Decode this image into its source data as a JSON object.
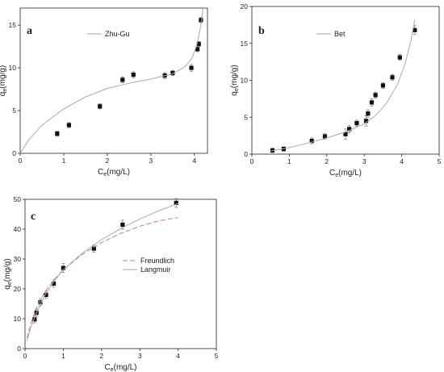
{
  "chart_data": [
    {
      "panel": "a",
      "type": "scatter",
      "xlabel": "Ce(mg/L)",
      "ylabel": "qe(mg/g)",
      "xlim": [
        0,
        4.3
      ],
      "ylim": [
        0,
        17
      ],
      "xticks": [
        0,
        1,
        2,
        3,
        4
      ],
      "yticks": [
        0,
        5,
        10,
        15
      ],
      "legend_position": "top-center",
      "series": [
        {
          "kind": "points",
          "marker": "square",
          "color": "#111111",
          "x": [
            0.85,
            1.12,
            1.83,
            2.35,
            2.6,
            3.32,
            3.5,
            3.93,
            4.07,
            4.1,
            4.15
          ],
          "y": [
            2.3,
            3.3,
            5.5,
            8.6,
            9.2,
            9.1,
            9.4,
            10.0,
            12.2,
            12.8,
            15.6
          ],
          "errors": [
            0.3,
            0.3,
            0.3,
            0.35,
            0.35,
            0.35,
            0.3,
            0.4,
            0.3,
            0.3,
            0.3
          ]
        },
        {
          "kind": "line",
          "name": "Zhu-Gu",
          "color": "#aaaaaa",
          "x": [
            0.0,
            0.2,
            0.5,
            1.0,
            1.5,
            2.0,
            2.5,
            3.0,
            3.5,
            3.8,
            3.95,
            4.05,
            4.12,
            4.17,
            4.2
          ],
          "y": [
            0.0,
            1.6,
            3.3,
            5.2,
            6.6,
            7.6,
            8.2,
            8.7,
            9.3,
            10.2,
            11.2,
            12.6,
            14.2,
            15.8,
            17.0
          ]
        }
      ]
    },
    {
      "panel": "b",
      "type": "scatter",
      "xlabel": "Ce(mg/L)",
      "ylabel": "qe(mg/g)",
      "xlim": [
        0,
        5
      ],
      "ylim": [
        0,
        20
      ],
      "xticks": [
        0,
        1,
        2,
        3,
        4,
        5
      ],
      "yticks": [
        0,
        5,
        10,
        15,
        20
      ],
      "legend_position": "top-center",
      "series": [
        {
          "kind": "points",
          "marker": "square",
          "color": "#111111",
          "x": [
            0.55,
            0.85,
            1.6,
            1.95,
            2.5,
            2.6,
            2.8,
            3.05,
            3.1,
            3.2,
            3.3,
            3.5,
            3.75,
            3.95,
            4.35
          ],
          "y": [
            0.5,
            0.7,
            1.8,
            2.4,
            2.7,
            3.4,
            4.2,
            4.5,
            5.5,
            7.0,
            8.0,
            9.3,
            10.4,
            13.1,
            16.8
          ],
          "errors": [
            0.3,
            0.3,
            0.4,
            0.4,
            0.7,
            0.5,
            0.4,
            0.7,
            0.5,
            0.5,
            0.4,
            0.4,
            0.4,
            0.4,
            0.6
          ]
        },
        {
          "kind": "line",
          "name": "Bet",
          "color": "#aaaaaa",
          "x": [
            0.5,
            1.0,
            1.5,
            2.0,
            2.5,
            3.0,
            3.3,
            3.6,
            3.9,
            4.1,
            4.25,
            4.35
          ],
          "y": [
            0.4,
            0.9,
            1.5,
            2.2,
            3.0,
            4.1,
            5.2,
            6.9,
            9.6,
            12.4,
            15.4,
            18.2
          ]
        }
      ]
    },
    {
      "panel": "c",
      "type": "scatter",
      "xlabel": "Ce(mg/L)",
      "ylabel": "qe(mg/g)",
      "xlim": [
        0,
        5
      ],
      "ylim": [
        0,
        50
      ],
      "xticks": [
        0,
        1,
        2,
        3,
        4,
        5
      ],
      "yticks": [
        0,
        10,
        20,
        30,
        40,
        50
      ],
      "legend_position": "lower-right",
      "series": [
        {
          "kind": "points",
          "marker": "square",
          "color": "#111111",
          "x": [
            0.25,
            0.3,
            0.4,
            0.55,
            0.75,
            1.0,
            1.8,
            2.55,
            3.95
          ],
          "y": [
            9.8,
            12.0,
            15.5,
            18.0,
            21.8,
            27.0,
            33.5,
            41.5,
            48.8
          ],
          "errors": [
            1.2,
            1.2,
            1.2,
            1.2,
            1.2,
            1.5,
            1.2,
            1.5,
            1.5
          ]
        },
        {
          "kind": "line",
          "name": "Freundlich",
          "dashed": true,
          "color": "#c08080",
          "x": [
            0.05,
            0.15,
            0.3,
            0.5,
            0.75,
            1.0,
            1.5,
            2.0,
            2.5,
            3.0,
            3.5,
            4.0
          ],
          "y": [
            3.5,
            8.4,
            13.6,
            18.6,
            23.0,
            26.4,
            31.6,
            35.5,
            38.6,
            41.0,
            42.8,
            43.9
          ]
        },
        {
          "kind": "line",
          "name": "Langmuir",
          "color": "#aaaaaa",
          "x": [
            0.05,
            0.15,
            0.3,
            0.5,
            0.75,
            1.0,
            1.5,
            2.0,
            2.5,
            3.0,
            3.5,
            4.0
          ],
          "y": [
            2.5,
            7.0,
            12.0,
            17.5,
            22.4,
            26.4,
            32.0,
            36.5,
            40.2,
            43.4,
            46.2,
            48.6
          ]
        }
      ]
    }
  ],
  "panel_letters": [
    "a",
    "b",
    "c"
  ],
  "axis_label_parts": {
    "x_main": "C",
    "x_sub": "e",
    "x_unit": "(mg/L)",
    "y_main": "q",
    "y_sub": "e",
    "y_unit": "(mg/g)"
  },
  "colors": {
    "points": "#111111",
    "axes": "#222222",
    "fit_line": "#aaaaaa",
    "freundlich_line": "#c08080"
  }
}
